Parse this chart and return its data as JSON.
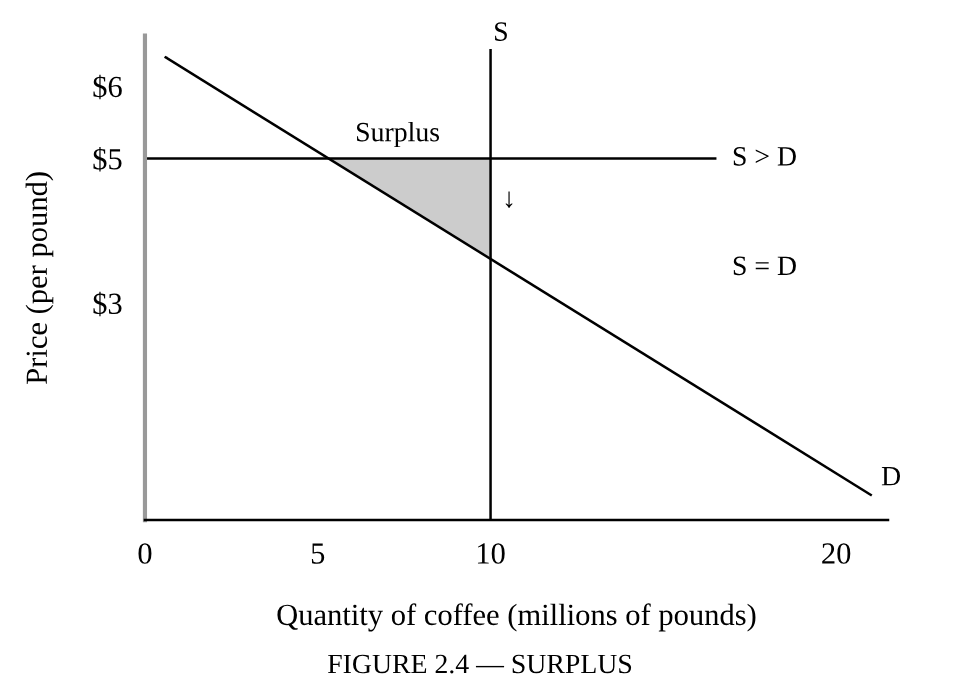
{
  "chart_data": {
    "type": "line",
    "xlabel": "Quantity of coffee (millions of pounds)",
    "ylabel": "Price (per pound)",
    "xlim": [
      0,
      21.5
    ],
    "ylim": [
      0,
      6.7
    ],
    "xticks": [
      0,
      5,
      10,
      20
    ],
    "yticks": [
      {
        "value": 3,
        "label": "$3"
      },
      {
        "value": 5,
        "label": "$5"
      },
      {
        "value": 6,
        "label": "$6"
      }
    ],
    "series": [
      {
        "type": "area",
        "color": "#cccccc",
        "x": [
          5.32,
          10,
          10
        ],
        "values": [
          5,
          5,
          3.61
        ]
      },
      {
        "name": "D",
        "color": "#000000",
        "x": [
          0.6,
          21
        ],
        "values": [
          6.4,
          0.35
        ]
      },
      {
        "name": "S",
        "color": "#000000",
        "x": [
          10,
          10
        ],
        "values": [
          0,
          6.5
        ]
      },
      {
        "color": "#000000",
        "x": [
          0,
          16.5
        ],
        "values": [
          5,
          5
        ]
      }
    ],
    "annotations": [
      "Surplus",
      "S > D",
      "S = D",
      "↓",
      "FIGURE 2.4 — SURPLUS"
    ],
    "line_style": "solid",
    "marker": "none",
    "grid": false,
    "legend": false
  }
}
